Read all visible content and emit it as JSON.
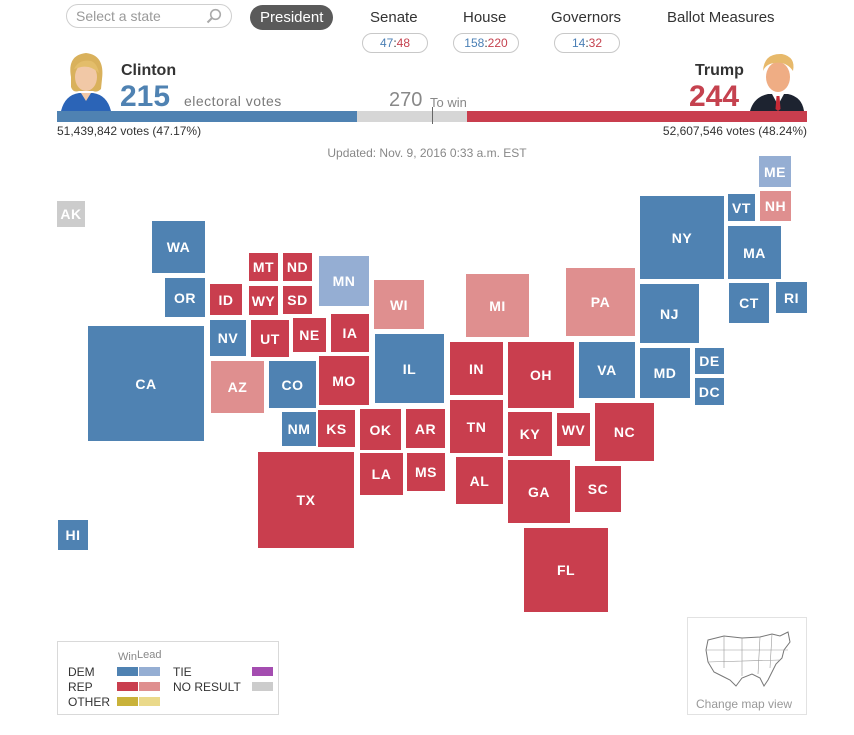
{
  "search": {
    "placeholder": "Select a state"
  },
  "nav": {
    "president": "President",
    "senate": "Senate",
    "house": "House",
    "governors": "Governors",
    "ballot": "Ballot Measures"
  },
  "scores": {
    "senate": {
      "dem": "47",
      "rep": "48"
    },
    "house": {
      "dem": "158",
      "rep": "220"
    },
    "governors": {
      "dem": "14",
      "rep": "32"
    }
  },
  "clinton": {
    "name": "Clinton",
    "ev": "215",
    "ev_label": "electoral votes",
    "votes": "51,439,842 votes (47.17%)"
  },
  "trump": {
    "name": "Trump",
    "ev": "244",
    "votes": "52,607,546 votes (48.24%)"
  },
  "to_win": {
    "num": "270",
    "label": "To win"
  },
  "bar": {
    "total": 538,
    "dem": 215,
    "rep": 244
  },
  "updated": "Updated: Nov. 9, 2016 0:33 a.m. EST",
  "colors": {
    "dem_win": "#4f82b2",
    "dem_lead": "#95aed3",
    "rep_win": "#c93e4e",
    "rep_lead": "#df8f8f",
    "other_win": "#c9b23a",
    "other_lead": "#ead98a",
    "tie": "#a44db0",
    "no_result": "#cccccc"
  },
  "states": {
    "AK": "AK",
    "HI": "HI",
    "WA": "WA",
    "OR": "OR",
    "CA": "CA",
    "NV": "NV",
    "ID": "ID",
    "MT": "MT",
    "WY": "WY",
    "UT": "UT",
    "AZ": "AZ",
    "CO": "CO",
    "NM": "NM",
    "ND": "ND",
    "SD": "SD",
    "NE": "NE",
    "KS": "KS",
    "OK": "OK",
    "TX": "TX",
    "MN": "MN",
    "IA": "IA",
    "MO": "MO",
    "AR": "AR",
    "LA": "LA",
    "WI": "WI",
    "IL": "IL",
    "MS": "MS",
    "MI": "MI",
    "IN": "IN",
    "TN": "TN",
    "AL": "AL",
    "OH": "OH",
    "KY": "KY",
    "GA": "GA",
    "FL": "FL",
    "PA": "PA",
    "WV": "WV",
    "VA": "VA",
    "NC": "NC",
    "SC": "SC",
    "NY": "NY",
    "NJ": "NJ",
    "MD": "MD",
    "DE": "DE",
    "DC": "DC",
    "ME": "ME",
    "VT": "VT",
    "NH": "NH",
    "MA": "MA",
    "CT": "CT",
    "RI": "RI"
  },
  "legend": {
    "win": "Win",
    "lead": "Lead",
    "dem": "DEM",
    "rep": "REP",
    "other": "OTHER",
    "tie": "TIE",
    "no_result": "NO RESULT"
  },
  "map_toggle": {
    "label": "Change map view"
  }
}
